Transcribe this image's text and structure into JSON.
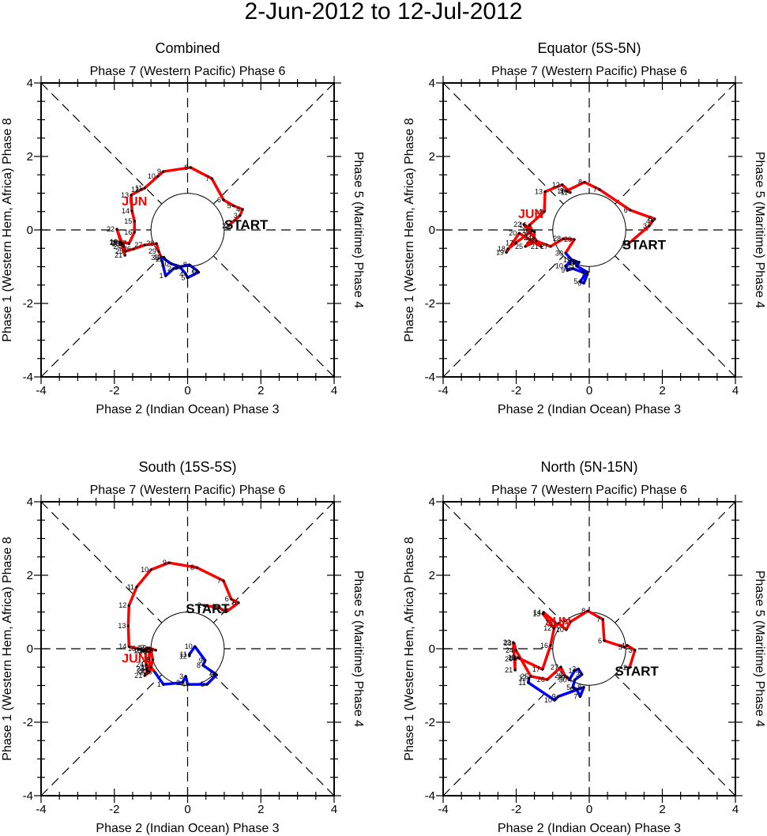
{
  "title": "2-Jun-2012 to 12-Jul-2012",
  "colors": {
    "june": "#ff0000",
    "july": "#0000ff",
    "axis": "#000000",
    "marker": "#000000"
  },
  "month_label": "JUN",
  "start_label": "START",
  "chart_data": [
    {
      "type": "line",
      "title": "Combined",
      "top_label": "Phase 7 (Western Pacific) Phase 6",
      "xlabel": "Phase 2 (Indian Ocean) Phase 3",
      "ylabel": "Phase 1 (Western Hem, Africa) Phase 8",
      "right_label": "Phase 5 (Maritime) Phase 4",
      "xlim": [
        -4,
        4
      ],
      "ylim": [
        -4,
        4
      ],
      "xticks": [
        "-4",
        "-2",
        "0",
        "2",
        "4"
      ],
      "yticks": [
        "-4",
        "-2",
        "0",
        "2",
        "4"
      ],
      "grid": "diagonal dashed + zero lines, unit circle",
      "start_pos": [
        1.6,
        0.15
      ],
      "jun_pos": [
        -1.45,
        0.8
      ],
      "series": [
        {
          "name": "June",
          "color": "#ff0000",
          "days": [
            2,
            3,
            4,
            5,
            6,
            7,
            8,
            9,
            10,
            11,
            12,
            13,
            14,
            15,
            16,
            17,
            18,
            19,
            20,
            21,
            22,
            23,
            24,
            25,
            26,
            27,
            28,
            29,
            30
          ],
          "x": [
            1.11,
            1.43,
            1.5,
            1.25,
            0.98,
            0.66,
            0.08,
            -0.66,
            -0.81,
            -1.17,
            -1.26,
            -1.54,
            -1.52,
            -1.45,
            -1.45,
            -1.6,
            -1.84,
            -1.86,
            -1.8,
            -1.71,
            -1.93,
            -1.78,
            -1.75,
            -1.69,
            -1.48,
            -1.17,
            -0.85,
            -0.79,
            -0.72
          ],
          "y": [
            0.11,
            0.39,
            0.56,
            0.66,
            0.82,
            1.4,
            1.7,
            1.59,
            1.46,
            1.14,
            1.1,
            0.95,
            0.52,
            0.24,
            -0.06,
            -0.37,
            -0.32,
            -0.34,
            -0.36,
            -0.69,
            0.02,
            -0.38,
            -0.45,
            -0.58,
            -0.52,
            -0.41,
            -0.37,
            -0.58,
            -0.75
          ]
        },
        {
          "name": "July",
          "color": "#0000ff",
          "days": [
            1,
            2,
            3,
            4,
            5,
            6,
            7,
            8,
            9,
            10,
            11,
            12
          ],
          "x": [
            -0.6,
            -0.38,
            -0.2,
            -0.05,
            0.0,
            0.3,
            0.25,
            0.05,
            -0.2,
            -0.45,
            -0.62,
            -0.65
          ],
          "y": [
            -1.25,
            -1.05,
            -1.02,
            -1.2,
            -1.3,
            -1.15,
            -1.1,
            -0.95,
            -1.0,
            -0.92,
            -0.8,
            -0.74
          ]
        }
      ]
    },
    {
      "type": "line",
      "title": "Equator (5S-5N)",
      "top_label": "Phase 7 (Western Pacific) Phase 6",
      "xlabel": "Phase 2 (Indian Ocean) Phase 3",
      "ylabel": "Phase 1 (Western Hem, Africa) Phase 8",
      "right_label": "Phase 5 (Maritime) Phase 4",
      "xlim": [
        -4,
        4
      ],
      "ylim": [
        -4,
        4
      ],
      "xticks": [
        "-4",
        "-2",
        "0",
        "2",
        "4"
      ],
      "yticks": [
        "-4",
        "-2",
        "0",
        "2",
        "4"
      ],
      "grid": "diagonal dashed + zero lines, unit circle",
      "start_pos": [
        1.5,
        -0.4
      ],
      "jun_pos": [
        -1.6,
        0.45
      ],
      "series": [
        {
          "name": "June",
          "color": "#ff0000",
          "days": [
            2,
            3,
            4,
            5,
            6,
            7,
            8,
            9,
            10,
            11,
            12,
            13,
            14,
            15,
            16,
            17,
            18,
            19,
            20,
            21,
            22,
            23,
            24,
            25,
            26,
            27,
            28,
            29,
            30
          ],
          "x": [
            1.08,
            1.64,
            1.73,
            1.79,
            1.12,
            0.28,
            -0.13,
            -0.63,
            -0.6,
            -0.52,
            -0.74,
            -1.21,
            -1.23,
            -1.64,
            -1.56,
            -2.01,
            -2.23,
            -2.27,
            -1.92,
            -1.32,
            -1.79,
            -1.5,
            -1.51,
            -1.75,
            -1.45,
            -1.06,
            -0.71,
            -0.41,
            -0.65
          ],
          "y": [
            -0.37,
            0.11,
            0.24,
            0.3,
            0.54,
            1.1,
            1.3,
            1.06,
            1.05,
            1.02,
            1.23,
            1.04,
            0.5,
            0.13,
            -0.02,
            -0.35,
            -0.52,
            -0.61,
            -0.09,
            -0.45,
            0.15,
            -0.05,
            -0.22,
            -0.45,
            -0.3,
            -0.45,
            -0.24,
            -0.26,
            -0.63
          ]
        },
        {
          "name": "July",
          "color": "#0000ff",
          "days": [
            1,
            2,
            3,
            4,
            5,
            6,
            7,
            8,
            9,
            10,
            11,
            12
          ],
          "x": [
            -0.4,
            -0.28,
            -0.35,
            -0.05,
            -0.25,
            -0.15,
            -0.05,
            -0.45,
            -0.6,
            -0.65,
            -0.45,
            -0.3
          ],
          "y": [
            -0.9,
            -0.88,
            -0.98,
            -1.15,
            -1.4,
            -1.45,
            -1.2,
            -1.05,
            -1.1,
            -0.98,
            -0.82,
            -0.88
          ]
        }
      ]
    },
    {
      "type": "line",
      "title": "South (15S-5S)",
      "top_label": "Phase 7 (Western Pacific) Phase 6",
      "xlabel": "Phase 2 (Indian Ocean) Phase 3",
      "ylabel": "Phase 1 (Western Hem, Africa) Phase 8",
      "right_label": "Phase 5 (Maritime) Phase 4",
      "xlim": [
        -4,
        4
      ],
      "ylim": [
        -4,
        4
      ],
      "xticks": [
        "-4",
        "-2",
        "0",
        "2",
        "4"
      ],
      "yticks": [
        "-4",
        "-2",
        "0",
        "2",
        "4"
      ],
      "grid": "diagonal dashed + zero lines, unit circle",
      "start_pos": [
        0.55,
        1.1
      ],
      "jun_pos": [
        -1.45,
        -0.25
      ],
      "series": [
        {
          "name": "June",
          "color": "#ff0000",
          "days": [
            2,
            3,
            4,
            5,
            6,
            7,
            8,
            9,
            10,
            11,
            12,
            13,
            14,
            15,
            16,
            17,
            18,
            19,
            20,
            21,
            22,
            23,
            24,
            25,
            26,
            27,
            28,
            29,
            30
          ],
          "x": [
            0.44,
            0.85,
            1.06,
            1.39,
            1.19,
            0.98,
            0.25,
            -0.51,
            -1.0,
            -1.39,
            -1.6,
            -1.62,
            -1.6,
            -1.35,
            -1.2,
            -1.1,
            -0.87,
            -1.05,
            -1.04,
            -1.17,
            -1.1,
            -1.12,
            -1.13,
            -1.15,
            -1.05,
            -1.0,
            -0.95,
            -1.0,
            -0.9
          ],
          "y": [
            1.18,
            1.12,
            1.01,
            1.25,
            1.35,
            1.85,
            2.21,
            2.34,
            2.15,
            1.68,
            1.18,
            0.62,
            0.06,
            0.0,
            -0.05,
            0.02,
            -0.04,
            0.02,
            -0.63,
            -0.73,
            -0.6,
            -0.55,
            -0.43,
            -0.05,
            -0.08,
            -0.03,
            -0.3,
            -0.5,
            -0.63
          ]
        },
        {
          "name": "July",
          "color": "#0000ff",
          "days": [
            1,
            2,
            3,
            4,
            5,
            6,
            7,
            8,
            9,
            10,
            11,
            12
          ],
          "x": [
            -0.66,
            -0.14,
            -0.05,
            0.0,
            0.53,
            0.79,
            0.74,
            0.42,
            0.48,
            0.2,
            0.05,
            0.05
          ],
          "y": [
            -0.97,
            -0.92,
            -0.75,
            -0.97,
            -0.97,
            -0.71,
            -0.67,
            -0.45,
            -0.32,
            0.06,
            -0.15,
            -0.2
          ]
        }
      ]
    },
    {
      "type": "line",
      "title": "North (5N-15N)",
      "top_label": "Phase 7 (Western Pacific) Phase 6",
      "xlabel": "Phase 2 (Indian Ocean) Phase 3",
      "ylabel": "Phase 1 (Western Hem, Africa) Phase 8",
      "right_label": "Phase 5 (Maritime) Phase 4",
      "xlim": [
        -4,
        4
      ],
      "ylim": [
        -4,
        4
      ],
      "xticks": [
        "-4",
        "-2",
        "0",
        "2",
        "4"
      ],
      "yticks": [
        "-4",
        "-2",
        "0",
        "2",
        "4"
      ],
      "grid": "diagonal dashed + zero lines, unit circle",
      "start_pos": [
        1.3,
        -0.6
      ],
      "jun_pos": [
        -0.85,
        0.75
      ],
      "series": [
        {
          "name": "June",
          "color": "#ff0000",
          "days": [
            2,
            3,
            4,
            5,
            6,
            7,
            8,
            9,
            10,
            11,
            12,
            13,
            14,
            15,
            16,
            17,
            18,
            19,
            20,
            21,
            22,
            23,
            24,
            25,
            26,
            27,
            28,
            29,
            30
          ],
          "x": [
            1.1,
            1.25,
            1.04,
            0.97,
            0.41,
            0.37,
            -0.04,
            -0.52,
            -0.63,
            -0.84,
            -0.97,
            -1.27,
            -1.25,
            -0.93,
            -1.06,
            -1.28,
            -1.92,
            -1.95,
            -2.03,
            -2.03,
            -2.08,
            -2.06,
            -2.01,
            -1.6,
            -1.15,
            -0.78,
            -0.67,
            -0.6,
            -0.55
          ],
          "y": [
            -0.52,
            -0.04,
            0.09,
            0.04,
            0.22,
            0.8,
            1.03,
            0.73,
            0.52,
            0.69,
            0.56,
            0.95,
            0.99,
            0.71,
            0.09,
            -0.56,
            -0.26,
            -0.24,
            -0.28,
            -0.58,
            0.17,
            0.15,
            -0.04,
            -0.75,
            -0.84,
            -0.5,
            -0.73,
            -0.78,
            -0.85
          ]
        },
        {
          "name": "July",
          "color": "#0000ff",
          "days": [
            1,
            2,
            3,
            4,
            5,
            6,
            7,
            8,
            9,
            10,
            11,
            12
          ],
          "x": [
            -0.4,
            -0.3,
            -0.2,
            -0.4,
            -0.45,
            -0.35,
            -0.25,
            -0.15,
            -0.85,
            -0.95,
            -1.67,
            -1.65
          ],
          "y": [
            -0.6,
            -0.55,
            -0.7,
            -0.85,
            -1.05,
            -1.1,
            -1.3,
            -1.05,
            -1.3,
            -1.4,
            -0.92,
            -0.8
          ]
        }
      ]
    }
  ]
}
